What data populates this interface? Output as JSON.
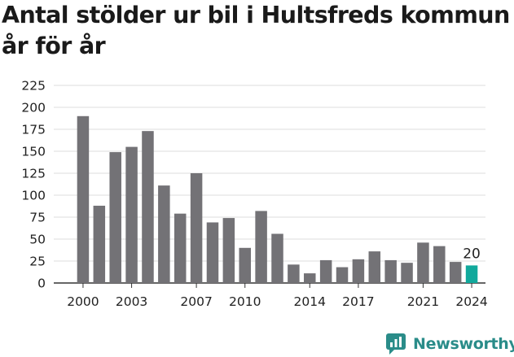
{
  "chart_data": {
    "type": "bar",
    "title_lines": [
      "Antal stölder ur bil i Hultsfreds kommun",
      "år för år"
    ],
    "xlabel": "",
    "ylabel": "",
    "ylim": [
      0,
      225
    ],
    "yticks": [
      0,
      25,
      50,
      75,
      100,
      125,
      150,
      175,
      200,
      225
    ],
    "grid": "horizontal",
    "categories": [
      2000,
      2001,
      2002,
      2003,
      2004,
      2005,
      2006,
      2007,
      2008,
      2009,
      2010,
      2011,
      2012,
      2013,
      2014,
      2015,
      2016,
      2017,
      2018,
      2019,
      2020,
      2021,
      2022,
      2023,
      2024
    ],
    "xtick_labels": [
      "2000",
      "2003",
      "2007",
      "2010",
      "2014",
      "2017",
      "2021",
      "2024"
    ],
    "values": [
      190,
      88,
      149,
      155,
      173,
      111,
      79,
      125,
      69,
      74,
      40,
      82,
      56,
      21,
      11,
      26,
      18,
      27,
      36,
      26,
      23,
      46,
      42,
      24,
      20
    ],
    "bar_color": "#737276",
    "highlight_color": "#11a99c",
    "highlight_category": 2024,
    "annotations": [
      {
        "category": 2024,
        "text": "20"
      }
    ]
  },
  "brand": {
    "name": "Newsworthy",
    "icon": "newsworthy-logo-icon",
    "color": "#2a8c89"
  }
}
